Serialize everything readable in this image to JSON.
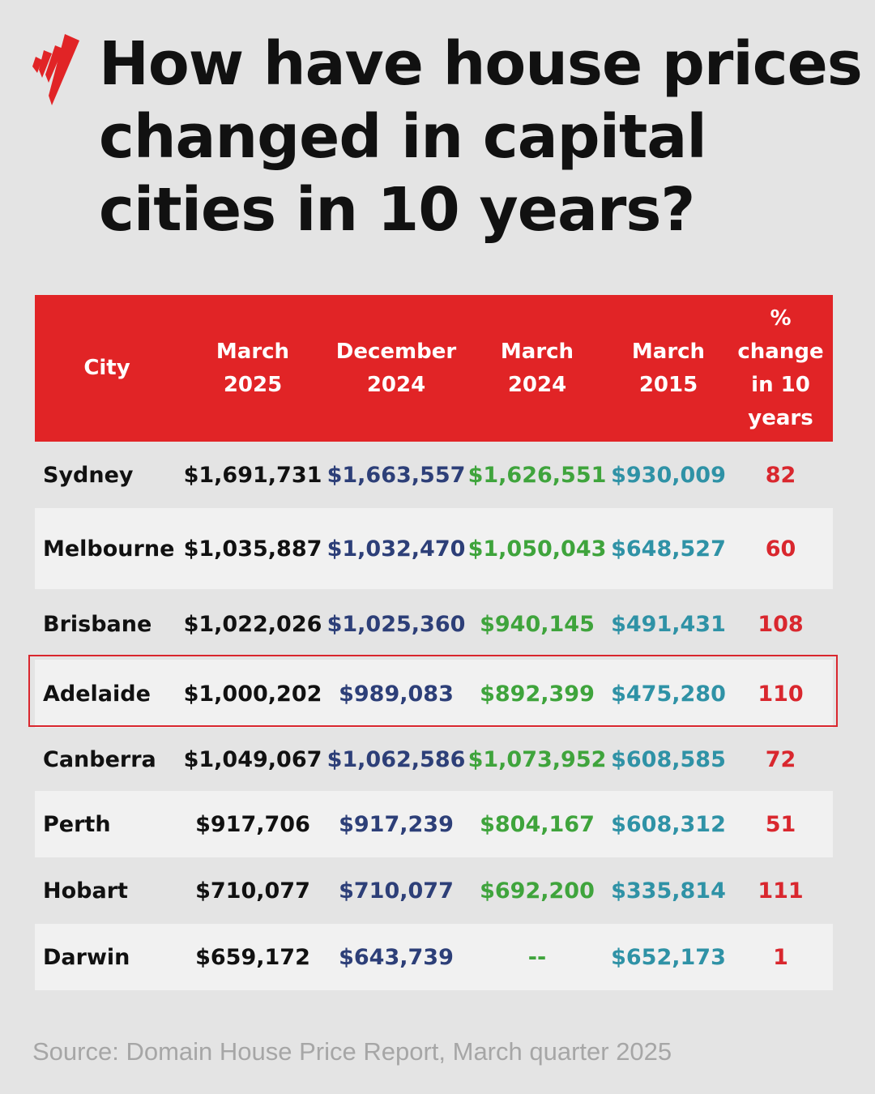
{
  "title_lines": [
    "How have house prices",
    "changed in capital",
    "cities in 10 years?"
  ],
  "brand_color": "#e12426",
  "icon": "sbs-logo-icon",
  "chart_data": {
    "type": "table",
    "columns": [
      "City",
      "March 2025",
      "December 2024",
      "March 2024",
      "March 2015",
      "% change in 10 years"
    ],
    "header_lines": [
      [
        "City"
      ],
      [
        "March",
        "2025"
      ],
      [
        "December",
        "2024"
      ],
      [
        "March",
        "2024"
      ],
      [
        "March",
        "2015"
      ],
      [
        "%",
        "change",
        "in 10",
        "years"
      ]
    ],
    "rows": [
      {
        "city": "Sydney",
        "mar2025": "$1,691,731",
        "dec2024": "$1,663,557",
        "mar2024": "$1,626,551",
        "mar2015": "$930,009",
        "pct": "82"
      },
      {
        "city": "Melbourne",
        "mar2025": "$1,035,887",
        "dec2024": "$1,032,470",
        "mar2024": "$1,050,043",
        "mar2015": "$648,527",
        "pct": "60"
      },
      {
        "city": "Brisbane",
        "mar2025": "$1,022,026",
        "dec2024": "$1,025,360",
        "mar2024": "$940,145",
        "mar2015": "$491,431",
        "pct": "108"
      },
      {
        "city": "Adelaide",
        "mar2025": "$1,000,202",
        "dec2024": "$989,083",
        "mar2024": "$892,399",
        "mar2015": "$475,280",
        "pct": "110"
      },
      {
        "city": "Canberra",
        "mar2025": "$1,049,067",
        "dec2024": "$1,062,586",
        "mar2024": "$1,073,952",
        "mar2015": "$608,585",
        "pct": "72"
      },
      {
        "city": "Perth",
        "mar2025": "$917,706",
        "dec2024": "$917,239",
        "mar2024": "$804,167",
        "mar2015": "$608,312",
        "pct": "51"
      },
      {
        "city": "Hobart",
        "mar2025": "$710,077",
        "dec2024": "$710,077",
        "mar2024": "$692,200",
        "mar2015": "$335,814",
        "pct": "111"
      },
      {
        "city": "Darwin",
        "mar2025": "$659,172",
        "dec2024": "$643,739",
        "mar2024": "--",
        "mar2015": "$652,173",
        "pct": "1"
      }
    ],
    "highlighted_row": "Adelaide",
    "column_colors": {
      "city": "#111111",
      "mar2025": "#111111",
      "dec2024": "#2d3f78",
      "mar2024": "#3fa43c",
      "mar2015": "#2f92a6",
      "pct": "#d9272e"
    }
  },
  "source": "Source: Domain House Price Report, March quarter 2025"
}
